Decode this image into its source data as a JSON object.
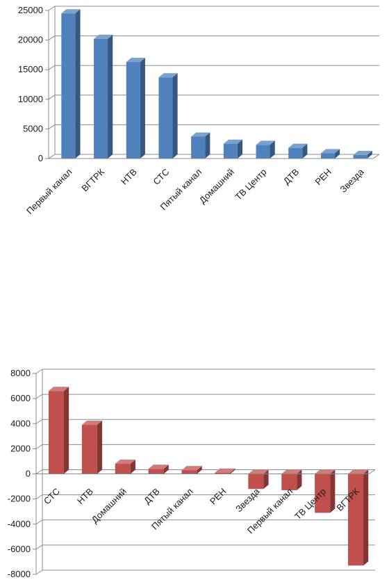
{
  "chart_data": [
    {
      "type": "bar",
      "style": "3d-column",
      "color": "#4f81bd",
      "grid": true,
      "legend": "none",
      "title": "",
      "categories": [
        "Первый канал",
        "ВГТРК",
        "НТВ",
        "СТС",
        "Пятый канал",
        "Домашний",
        "ТВ Центр",
        "ДТВ",
        "РЕН",
        "Звезда"
      ],
      "values": [
        24500,
        20200,
        16300,
        13700,
        3700,
        2500,
        2300,
        1800,
        900,
        600
      ],
      "ylim": [
        0,
        25000
      ],
      "yticks": [
        0,
        5000,
        10000,
        15000,
        20000,
        25000
      ],
      "ytick_labels": [
        "0",
        "5000",
        "10000",
        "15000",
        "20000",
        "25000"
      ]
    },
    {
      "type": "bar",
      "style": "3d-column",
      "color": "#c0504d",
      "grid": true,
      "legend": "none",
      "title": "",
      "categories": [
        "СТС",
        "НТВ",
        "Домашний",
        "ДТВ",
        "Пятый канал",
        "РЕН",
        "Звезда",
        "Первый канал",
        "ТВ Центр",
        "ВГТРК"
      ],
      "values": [
        6600,
        3900,
        800,
        400,
        300,
        100,
        -1200,
        -1300,
        -3100,
        -7300
      ],
      "ylim": [
        -8000,
        8000
      ],
      "yticks": [
        -8000,
        -6000,
        -4000,
        -2000,
        0,
        2000,
        4000,
        6000,
        8000
      ],
      "ytick_labels": [
        "-8000",
        "-6000",
        "-4000",
        "-2000",
        "0",
        "2000",
        "4000",
        "6000",
        "8000"
      ]
    }
  ]
}
